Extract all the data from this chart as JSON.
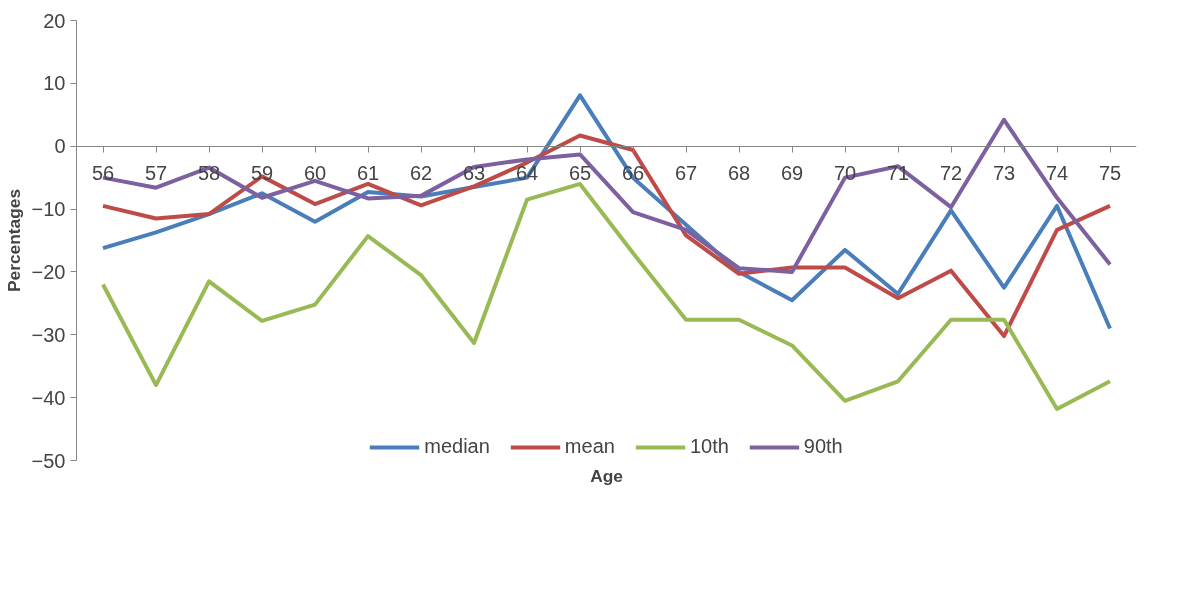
{
  "chart_data": {
    "type": "line",
    "xlabel": "Age",
    "ylabel": "Percentages",
    "categories": [
      "56",
      "57",
      "58",
      "59",
      "60",
      "61",
      "62",
      "63",
      "64",
      "65",
      "66",
      "67",
      "68",
      "69",
      "70",
      "71",
      "72",
      "73",
      "74",
      "75"
    ],
    "ylim": [
      -50,
      20
    ],
    "yticks": [
      -50,
      -40,
      -30,
      -20,
      -10,
      0,
      10,
      20
    ],
    "grid": false,
    "legend": "bottom",
    "marker": "none",
    "line_style": "solid",
    "series": [
      {
        "name": "median",
        "color": "#4a7ebb",
        "values": [
          -16.2,
          -13.7,
          -10.8,
          -7.5,
          -12,
          -7.3,
          -8,
          -6.5,
          -5,
          8.1,
          -5,
          -12.5,
          -20,
          -24.5,
          -16.5,
          -23.5,
          -10.2,
          -22.5,
          -9.5,
          -29
        ]
      },
      {
        "name": "mean",
        "color": "#be4b48",
        "values": [
          -9.5,
          -11.5,
          -10.8,
          -4.8,
          -9.2,
          -6,
          -9.4,
          -6.4,
          -2.6,
          1.7,
          -0.6,
          -14.2,
          -20.3,
          -19.3,
          -19.3,
          -24.2,
          -19.8,
          -30.2,
          -13.3,
          -9.5
        ]
      },
      {
        "name": "10th",
        "color": "#98b954",
        "values": [
          -22,
          -38,
          -21.5,
          -27.8,
          -25.2,
          -14.3,
          -20.5,
          -31.3,
          -8.5,
          -6,
          -17,
          -27.6,
          -27.6,
          -31.7,
          -40.5,
          -37.4,
          -27.6,
          -27.6,
          -41.8,
          -37.4
        ]
      },
      {
        "name": "90th",
        "color": "#7d60a0",
        "values": [
          -5,
          -6.6,
          -3.4,
          -8.2,
          -5.5,
          -8.3,
          -7.9,
          -3.3,
          -2.1,
          -1.3,
          -10.5,
          -13.3,
          -19.4,
          -20,
          -5,
          -3.2,
          -9.7,
          4.2,
          -8.2,
          -18.8
        ]
      }
    ]
  }
}
